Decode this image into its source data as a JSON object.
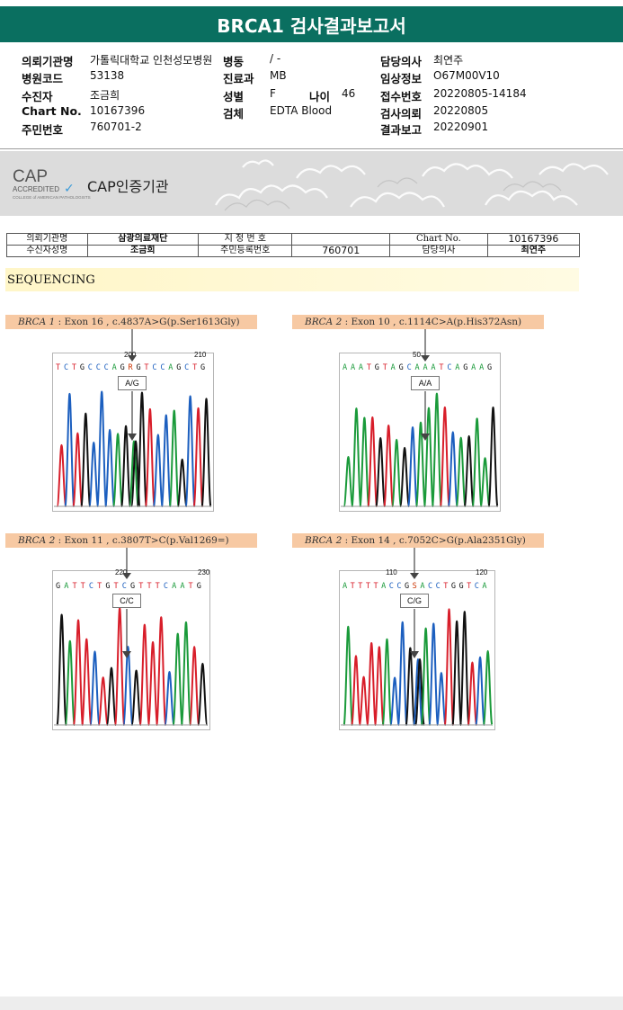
{
  "report": {
    "title": "BRCA1 검사결과보고서"
  },
  "info": {
    "institution_label": "의뢰기관명",
    "institution_value": "가톨릭대학교 인천성모병원",
    "ward_label": "병동",
    "ward_value": "/ -",
    "physician_label": "담당의사",
    "physician_value": "최연주",
    "hospital_code_label": "병원코드",
    "hospital_code_value": "53138",
    "dept_label": "진료과",
    "dept_value": "MB",
    "clinical_label": "임상정보",
    "clinical_value": "O67M00V10",
    "patient_label": "수진자",
    "patient_value": "조금희",
    "sex_label": "성별",
    "sex_value": "F",
    "age_label": "나이",
    "age_value": "46",
    "receipt_label": "접수번호",
    "receipt_value": "20220805-14184",
    "chart_label": "Chart No.",
    "chart_value": "10167396",
    "specimen_label": "검체",
    "specimen_value": "EDTA Blood",
    "request_label": "검사의뢰",
    "request_value": "20220805",
    "rrn_label": "주민번호",
    "rrn_value": "760701-2",
    "report_label": "결과보고",
    "report_value": "20220901"
  },
  "cap": {
    "mark": "CAP",
    "accredited": "ACCREDITED",
    "college": "COLLEGE of AMERICAN PATHOLOGISTS",
    "title": "CAP인증기관"
  },
  "id_table": {
    "inst_label": "의뢰기관명",
    "inst_value": "삼광의료재단",
    "designated_label": "지 정 번 호",
    "designated_value": "",
    "chart_label": "Chart No.",
    "chart_value": "10167396",
    "patient_label": "수신자성명",
    "patient_value": "조금희",
    "rrn_label": "주민등록번호",
    "rrn_value": "760701",
    "doctor_label": "담당의사",
    "doctor_value": "최연주"
  },
  "section": {
    "title": "SEQUENCING"
  },
  "panels": [
    {
      "gene": "BRCA 1",
      "rest": " : Exon 16 , c.4837A>G(p.Ser1613Gly)",
      "seq": "TCTGCCCAGRGTCCAGCTG",
      "pos1": "200",
      "pos2": "210",
      "genotype": "A/G"
    },
    {
      "gene": "BRCA 2",
      "rest": " : Exon 10 , c.1114C>A(p.His372Asn)",
      "seq": "AAATGTAGCAAATCAGAAG",
      "pos1": "50",
      "pos2": "",
      "genotype": "A/A"
    },
    {
      "gene": "BRCA 2",
      "rest": " : Exon 11 , c.3807T>C(p.Val1269=)",
      "seq": "GATTCTGTCGTTTCAATG",
      "pos1": "220",
      "pos2": "230",
      "genotype": "C/C"
    },
    {
      "gene": "BRCA 2",
      "rest": " : Exon 14 , c.7052C>G(p.Ala2351Gly)",
      "seq": "ATTTTACCGSACCTGGTCA",
      "pos1": "110",
      "pos2": "120",
      "genotype": "C/G"
    }
  ],
  "colors": {
    "title_bar": "#0a6f60",
    "label_bg": "#f7c9a3",
    "A": "#1a9a3a",
    "C": "#1c5fbf",
    "G": "#111111",
    "T": "#d81e2a",
    "R": "#cc3300",
    "S": "#cc3300"
  }
}
